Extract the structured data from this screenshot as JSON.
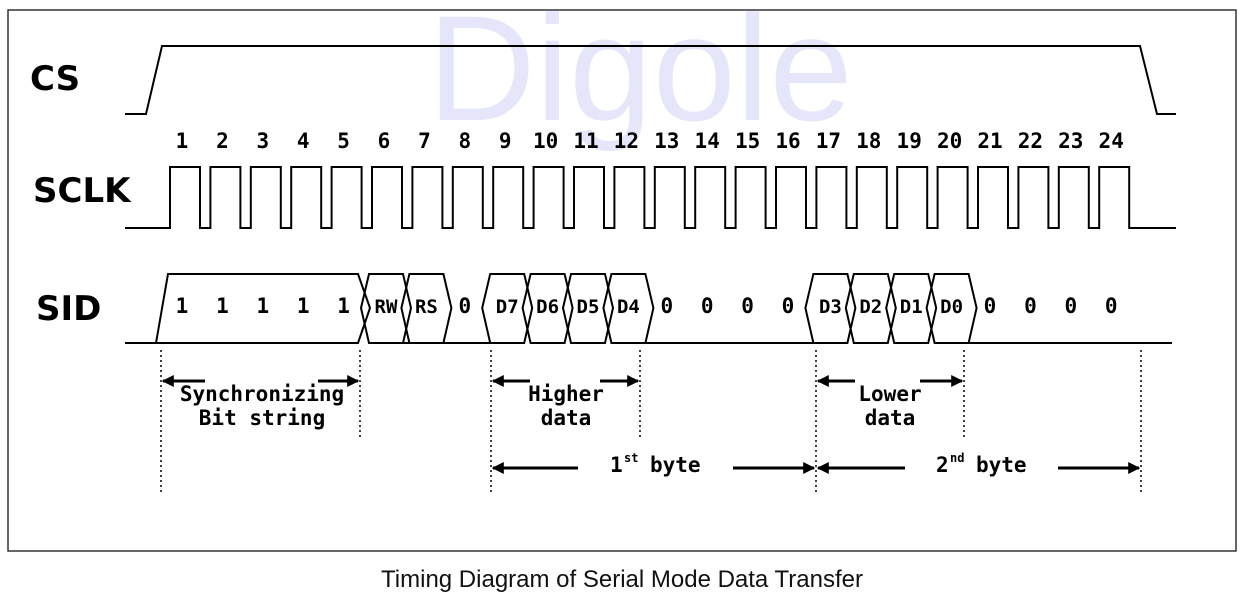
{
  "watermark": "Digole",
  "signals": {
    "cs": "CS",
    "sclk": "SCLK",
    "sid": "SID"
  },
  "clock_numbers": [
    "1",
    "2",
    "3",
    "4",
    "5",
    "6",
    "7",
    "8",
    "9",
    "10",
    "11",
    "12",
    "13",
    "14",
    "15",
    "16",
    "17",
    "18",
    "19",
    "20",
    "21",
    "22",
    "23",
    "24"
  ],
  "sid_bits": [
    "1",
    "1",
    "1",
    "1",
    "1",
    "RW",
    "RS",
    "0",
    "D7",
    "D6",
    "D5",
    "D4",
    "0",
    "0",
    "0",
    "0",
    "D3",
    "D2",
    "D1",
    "D0",
    "0",
    "0",
    "0",
    "0"
  ],
  "annotations": {
    "sync_line1": "Synchronizing",
    "sync_line2": "Bit string",
    "higher_line1": "Higher",
    "higher_line2": "data",
    "lower_line1": "Lower",
    "lower_line2": "data",
    "byte1_num": "1",
    "byte1_sup": "st",
    "byte1_word": "byte",
    "byte2_num": "2",
    "byte2_sup": "nd",
    "byte2_word": "byte"
  },
  "caption": "Timing Diagram of Serial Mode Data Transfer"
}
